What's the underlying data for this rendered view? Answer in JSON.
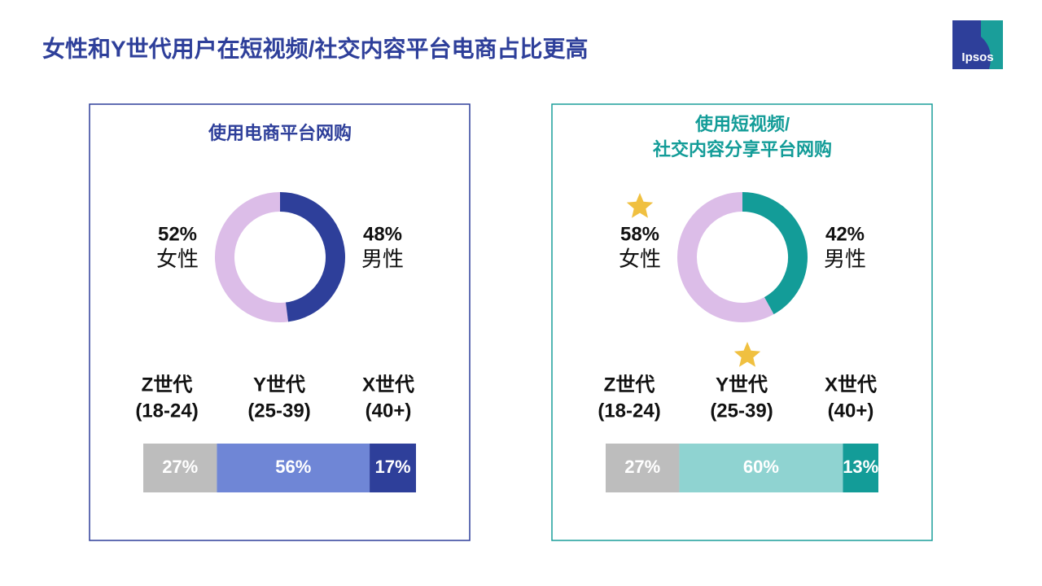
{
  "title": "女性和Y世代用户在短视频/社交内容平台电商占比更高",
  "logo": "Ipsos",
  "chart_data": [
    {
      "type": "donut",
      "title": [
        "使用电商平台网购"
      ],
      "categories": [
        "女性",
        "男性"
      ],
      "values": [
        52,
        48
      ],
      "value_labels": [
        "52%",
        "48%"
      ],
      "colors": [
        "#dcbde8",
        "#2e3f9a"
      ],
      "border": "#2e3f9a",
      "title_color": "#2e3f9a"
    },
    {
      "type": "stacked-bar",
      "categories": [
        "Z世代",
        "Y世代",
        "X世代"
      ],
      "category_ranges": [
        "(18-24)",
        "(25-39)",
        "(40+)"
      ],
      "values": [
        27,
        56,
        17
      ],
      "value_labels": [
        "27%",
        "56%",
        "17%"
      ],
      "colors": [
        "#bdbdbd",
        "#6f86d6",
        "#2e3f9a"
      ],
      "xlim": [
        0,
        100
      ]
    },
    {
      "type": "donut",
      "title": [
        "使用短视频/",
        "社交内容分享平台网购"
      ],
      "categories": [
        "女性",
        "男性"
      ],
      "values": [
        58,
        42
      ],
      "value_labels": [
        "58%",
        "42%"
      ],
      "colors": [
        "#dcbde8",
        "#139c98"
      ],
      "border": "#1a9e9a",
      "title_color": "#139c98",
      "highlight": 0
    },
    {
      "type": "stacked-bar",
      "categories": [
        "Z世代",
        "Y世代",
        "X世代"
      ],
      "category_ranges": [
        "(18-24)",
        "(25-39)",
        "(40+)"
      ],
      "values": [
        27,
        60,
        13
      ],
      "value_labels": [
        "27%",
        "60%",
        "13%"
      ],
      "colors": [
        "#bdbdbd",
        "#8fd3d1",
        "#139c98"
      ],
      "xlim": [
        0,
        100
      ],
      "highlight": 1
    }
  ]
}
